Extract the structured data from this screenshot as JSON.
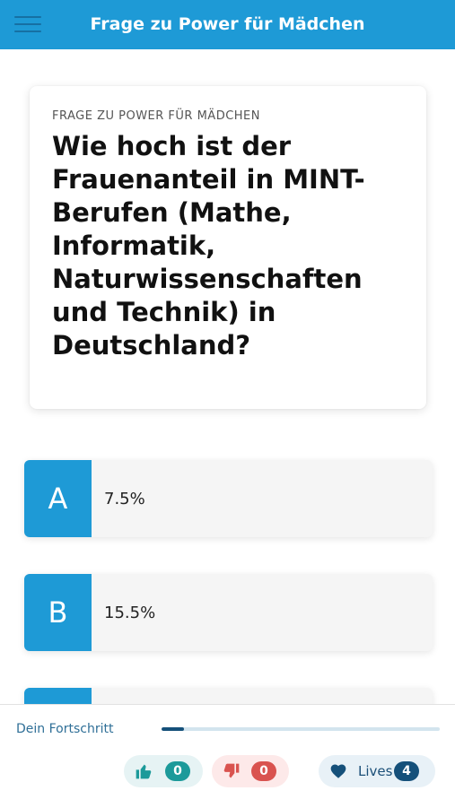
{
  "header": {
    "title": "Frage zu Power für Mädchen",
    "menu_icon": "hamburger-menu-icon"
  },
  "question": {
    "category": "FRAGE ZU POWER FÜR MÄDCHEN",
    "text": "Wie hoch ist der Frauenanteil in MINT-Berufen (Mathe, Informatik, Naturwissenschaften und Technik) in Deutschland?"
  },
  "answers": [
    {
      "letter": "A",
      "text": "7.5%"
    },
    {
      "letter": "B",
      "text": "15.5%"
    },
    {
      "letter": "",
      "text": ""
    }
  ],
  "footer": {
    "progress_label": "Dein Fortschritt",
    "progress_fraction": 0.08,
    "likes": {
      "icon": "thumbs-up-icon",
      "count": "0",
      "color": "#1c9a9a"
    },
    "dislikes": {
      "icon": "thumbs-down-icon",
      "count": "0",
      "color": "#d9534f"
    },
    "lives": {
      "icon": "heart-icon",
      "label": "Lives",
      "count": "4",
      "color": "#15507a"
    }
  },
  "colors": {
    "brand": "#1e9ad6"
  }
}
